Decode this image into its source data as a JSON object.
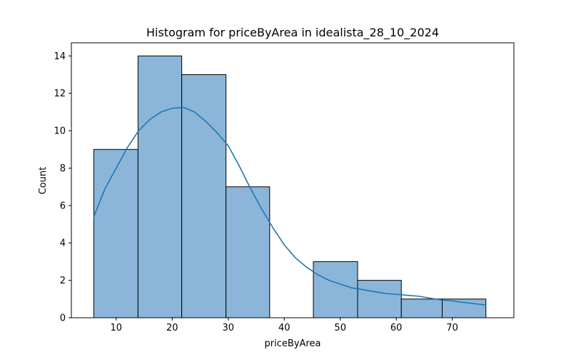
{
  "chart_data": {
    "type": "bar",
    "subtype": "histogram-with-kde",
    "title": "Histogram for priceByArea in idealista_28_10_2024",
    "xlabel": "priceByArea",
    "ylabel": "Count",
    "xlim": [
      2,
      81
    ],
    "ylim": [
      0,
      14.7
    ],
    "x_ticks": [
      10,
      20,
      30,
      40,
      50,
      60,
      70
    ],
    "y_ticks": [
      0,
      2,
      4,
      6,
      8,
      10,
      12,
      14
    ],
    "grid": false,
    "bins": [
      {
        "start": 6.0,
        "end": 13.9,
        "count": 9
      },
      {
        "start": 13.9,
        "end": 21.7,
        "count": 14
      },
      {
        "start": 21.7,
        "end": 29.6,
        "count": 13
      },
      {
        "start": 29.6,
        "end": 37.4,
        "count": 7
      },
      {
        "start": 37.4,
        "end": 45.2,
        "count": 0
      },
      {
        "start": 45.2,
        "end": 53.1,
        "count": 3
      },
      {
        "start": 53.1,
        "end": 60.9,
        "count": 2
      },
      {
        "start": 60.9,
        "end": 68.2,
        "count": 1
      },
      {
        "start": 68.2,
        "end": 76.0,
        "count": 1
      }
    ],
    "kde": {
      "x": [
        6,
        8,
        10,
        12,
        14,
        16,
        18,
        20,
        22,
        24,
        26,
        28,
        30,
        32,
        34,
        36,
        38,
        40,
        42,
        44,
        46,
        48,
        50,
        52,
        54,
        56,
        58,
        60,
        62,
        64,
        66,
        68,
        70,
        72,
        74,
        76
      ],
      "y": [
        5.4,
        6.9,
        8.0,
        9.1,
        10.0,
        10.6,
        11.0,
        11.2,
        11.25,
        11.0,
        10.5,
        9.9,
        9.2,
        8.1,
        6.9,
        5.8,
        4.8,
        3.9,
        3.2,
        2.7,
        2.3,
        2.0,
        1.8,
        1.6,
        1.5,
        1.4,
        1.3,
        1.25,
        1.2,
        1.15,
        1.05,
        0.95,
        0.9,
        0.82,
        0.75,
        0.68
      ]
    },
    "colors": {
      "bar_fill": "#8bb6d9",
      "bar_edge": "#000000",
      "kde_line": "#1f77b4"
    }
  }
}
